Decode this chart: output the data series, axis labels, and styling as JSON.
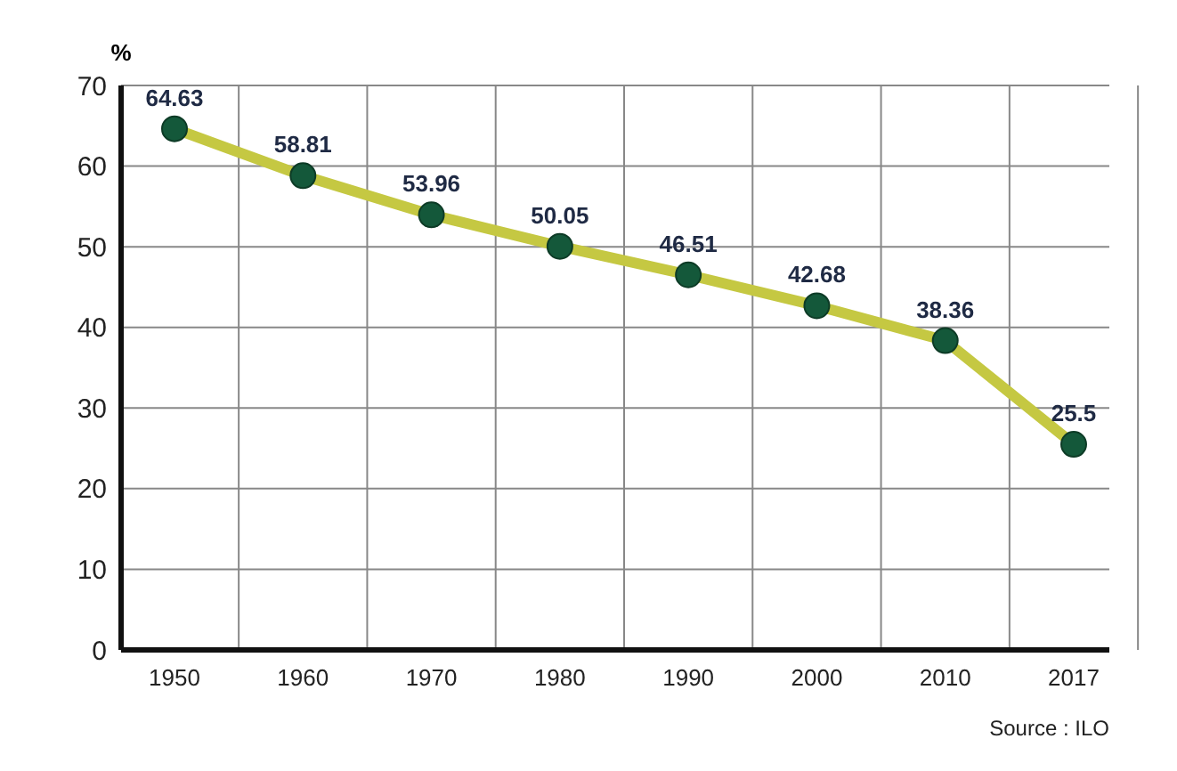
{
  "chart_data": {
    "type": "line",
    "ylabel": "%",
    "categories": [
      "1950",
      "1960",
      "1970",
      "1980",
      "1990",
      "2000",
      "2010",
      "2017"
    ],
    "series": [
      {
        "color": "#c5c842",
        "values": [
          64.63,
          58.81,
          53.96,
          50.05,
          46.51,
          42.68,
          38.36,
          25.5
        ]
      }
    ],
    "ylim": [
      0,
      70
    ],
    "yticks": [
      0,
      10,
      20,
      30,
      40,
      50,
      60,
      70
    ],
    "grid": true,
    "marker": "circle",
    "line_style": "solid",
    "data_labels": true,
    "annotations": [
      "Source : ILO"
    ]
  }
}
